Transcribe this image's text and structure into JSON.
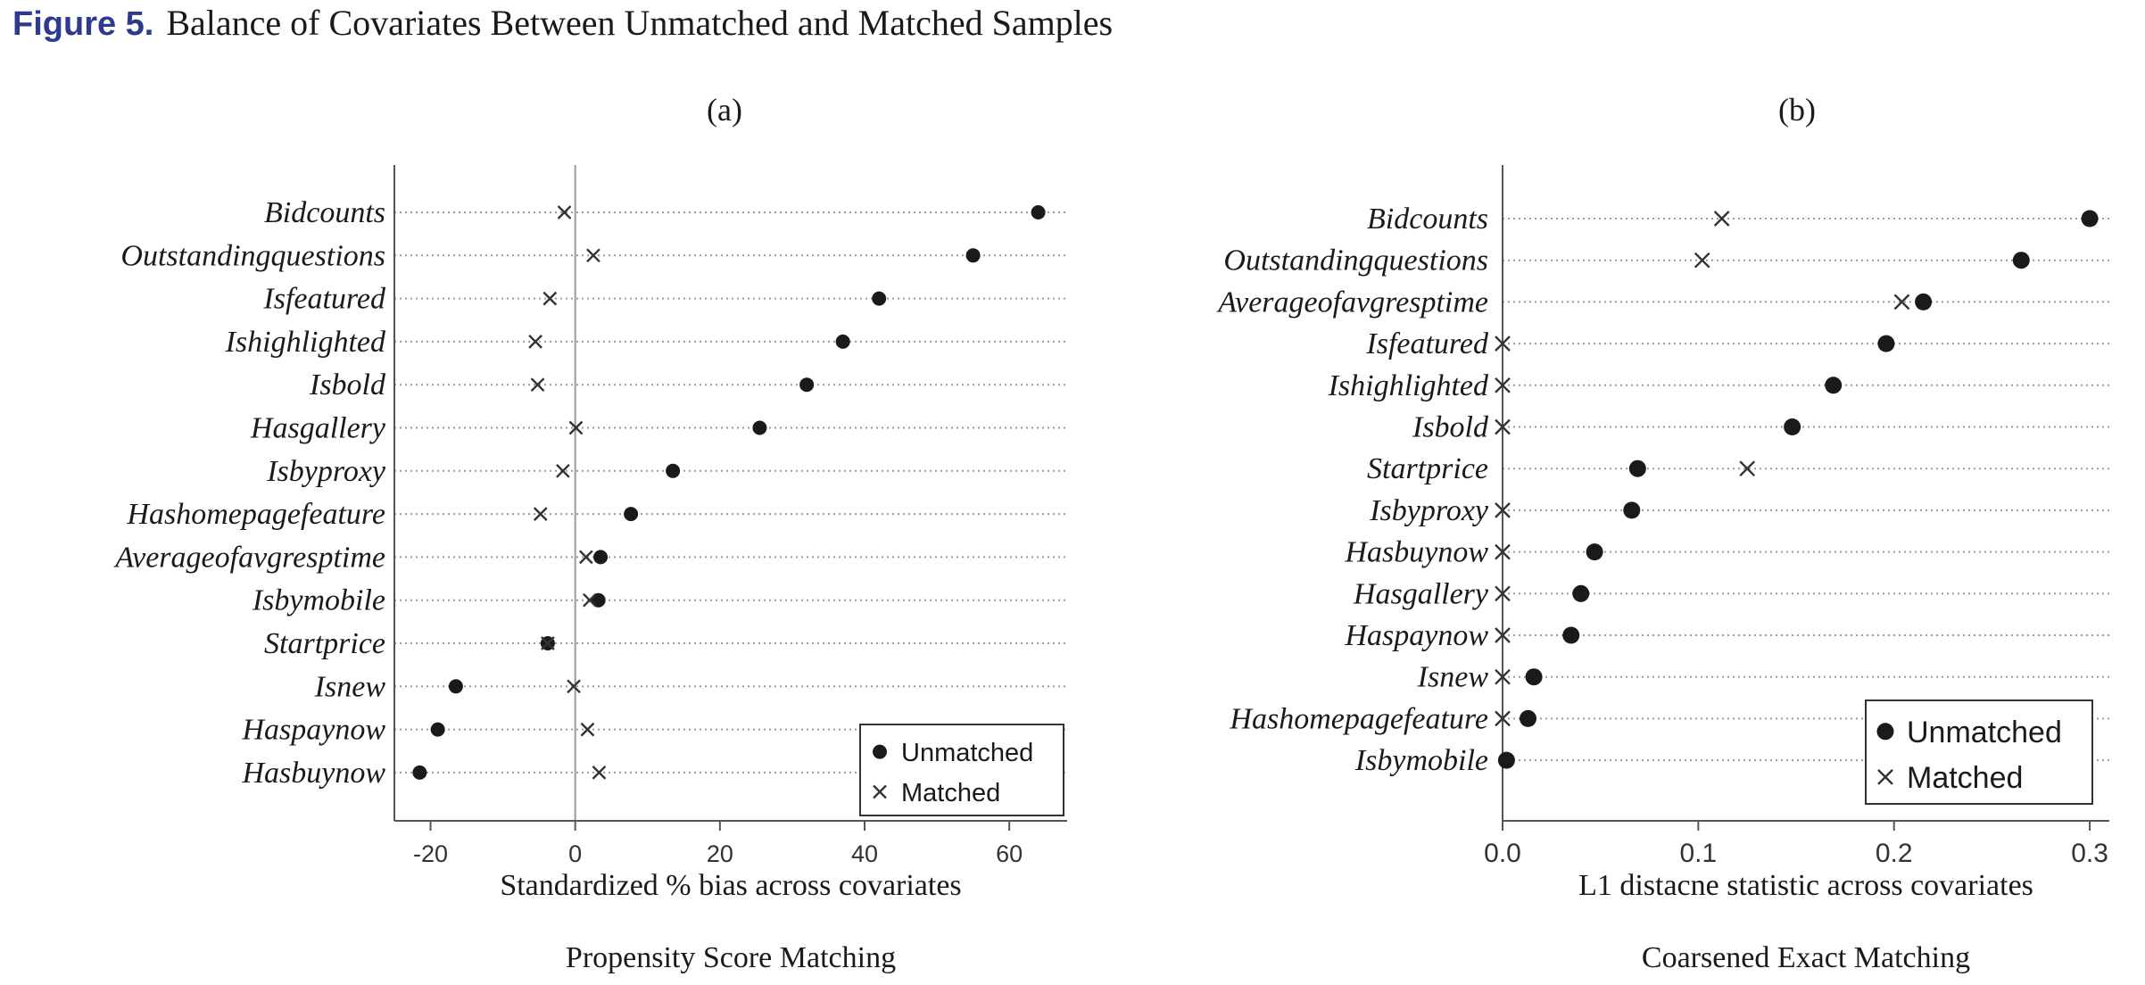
{
  "figure": {
    "label": "Figure 5.",
    "title": "Balance of Covariates Between Unmatched and Matched Samples"
  },
  "colors": {
    "label_blue": "#2c3b8e",
    "marker": "#1a1a1a",
    "axis": "#555555",
    "grid": "#9a9a9a"
  },
  "chart_data": [
    {
      "type": "scatter",
      "panel_label": "(a)",
      "xlabel": "Standardized % bias across covariates",
      "caption": "Propensity Score Matching",
      "xlim": [
        -25,
        68
      ],
      "xticks": [
        -20,
        0,
        20,
        40,
        60
      ],
      "xtick_labels": [
        "-20",
        "0",
        "20",
        "40",
        "60"
      ],
      "zero_line": true,
      "grid": "horizontal dotted",
      "legend_position": "bottom-right",
      "categories": [
        "Bidcounts",
        "Outstandingquestions",
        "Isfeatured",
        "Ishighlighted",
        "Isbold",
        "Hasgallery",
        "Isbyproxy",
        "Hashomepagefeature",
        "Averageofavgresptime",
        "Isbymobile",
        "Startprice",
        "Isnew",
        "Haspaynow",
        "Hasbuynow"
      ],
      "series": [
        {
          "name": "Unmatched",
          "marker": "circle",
          "values": [
            64,
            55,
            42,
            37,
            32,
            25.5,
            13.5,
            7.7,
            3.5,
            3.2,
            -3.8,
            -16.5,
            -19,
            -21.5
          ]
        },
        {
          "name": "Matched",
          "marker": "x",
          "values": [
            -1.5,
            2.5,
            -3.5,
            -5.5,
            -5.2,
            0.1,
            -1.7,
            -4.8,
            1.5,
            2,
            -3.8,
            -0.2,
            1.7,
            3.3
          ]
        }
      ]
    },
    {
      "type": "scatter",
      "panel_label": "(b)",
      "xlabel": "L1 distacne statistic across covariates",
      "caption": "Coarsened Exact Matching",
      "xlim": [
        0,
        0.31
      ],
      "xticks": [
        0,
        0.1,
        0.2,
        0.3
      ],
      "xtick_labels": [
        "0.0",
        "0.1",
        "0.2",
        "0.3"
      ],
      "zero_line": false,
      "grid": "horizontal dotted",
      "legend_position": "bottom-right",
      "categories": [
        "Bidcounts",
        "Outstandingquestions",
        "Averageofavgresptime",
        "Isfeatured",
        "Ishighlighted",
        "Isbold",
        "Startprice",
        "Isbyproxy",
        "Hasbuynow",
        "Hasgallery",
        "Haspaynow",
        "Isnew",
        "Hashomepagefeature",
        "Isbymobile"
      ],
      "series": [
        {
          "name": "Unmatched",
          "marker": "circle",
          "values": [
            0.3,
            0.265,
            0.215,
            0.196,
            0.169,
            0.148,
            0.069,
            0.066,
            0.047,
            0.04,
            0.035,
            0.016,
            0.013,
            0.002
          ]
        },
        {
          "name": "Matched",
          "marker": "x",
          "values": [
            0.112,
            0.102,
            0.204,
            0,
            0,
            0,
            0.125,
            0,
            0,
            0,
            0,
            0,
            0,
            null
          ]
        }
      ]
    }
  ]
}
